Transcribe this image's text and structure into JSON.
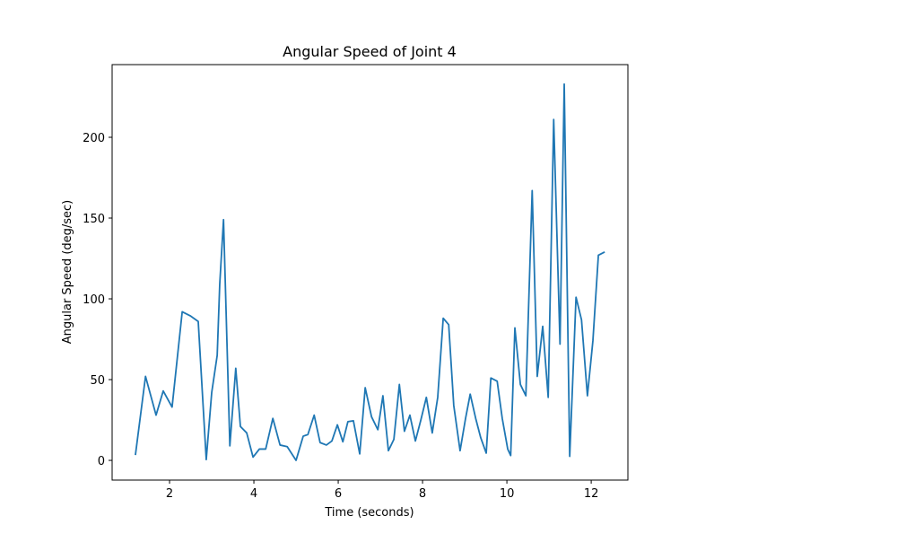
{
  "chart_data": {
    "type": "line",
    "title": "Angular Speed of Joint 4",
    "xlabel": "Time (seconds)",
    "ylabel": "Angular Speed (deg/sec)",
    "color": "#1f77b4",
    "grid": false,
    "x": [
      1.19,
      1.43,
      1.68,
      1.85,
      2.06,
      2.3,
      2.49,
      2.68,
      2.87,
      3.0,
      3.13,
      3.19,
      3.28,
      3.43,
      3.57,
      3.68,
      3.83,
      3.98,
      4.13,
      4.28,
      4.45,
      4.62,
      4.79,
      5.0,
      5.17,
      5.28,
      5.43,
      5.57,
      5.72,
      5.85,
      5.98,
      6.11,
      6.23,
      6.36,
      6.51,
      6.64,
      6.79,
      6.94,
      7.06,
      7.19,
      7.32,
      7.45,
      7.57,
      7.7,
      7.83,
      7.96,
      8.09,
      8.23,
      8.36,
      8.49,
      8.62,
      8.74,
      8.89,
      9.02,
      9.13,
      9.26,
      9.38,
      9.51,
      9.62,
      9.77,
      9.89,
      10.02,
      10.09,
      10.19,
      10.32,
      10.45,
      10.6,
      10.72,
      10.85,
      10.98,
      11.11,
      11.26,
      11.36,
      11.49,
      11.64,
      11.77,
      11.91,
      12.04,
      12.17,
      12.32
    ],
    "values": [
      3.3,
      52,
      28,
      43,
      33,
      92,
      89.5,
      86,
      0.5,
      42,
      65,
      109,
      149,
      9,
      57,
      21,
      17,
      2,
      7,
      7,
      26,
      9.5,
      8.5,
      0,
      15,
      16,
      28,
      11,
      9.5,
      12,
      22,
      11.5,
      24,
      24.5,
      4,
      45,
      27,
      19,
      40,
      6,
      13,
      47,
      18,
      28,
      12,
      25,
      39,
      17,
      39,
      88,
      84,
      34,
      6,
      26,
      41,
      26,
      14,
      4.5,
      51,
      49,
      26,
      7,
      3,
      82,
      47,
      40,
      167,
      52,
      83,
      39,
      211,
      72,
      233,
      2.5,
      101,
      87,
      40,
      74,
      127,
      129
    ],
    "xlim": [
      0.638,
      12.87
    ],
    "ylim": [
      -12.2,
      245
    ],
    "xticks": [
      2,
      4,
      6,
      8,
      10,
      12
    ],
    "yticks": [
      0,
      50,
      100,
      150,
      200
    ]
  }
}
